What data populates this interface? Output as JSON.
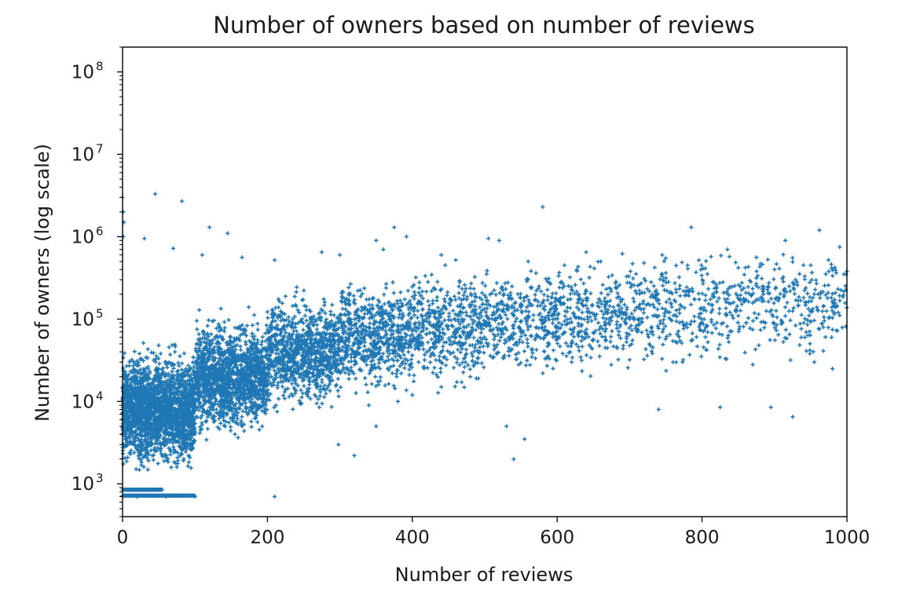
{
  "chart_data": {
    "type": "scatter",
    "title": "Number of owners based on number of reviews",
    "xlabel": "Number of reviews",
    "ylabel": "Number of owners (log scale)",
    "xlim": [
      0,
      1000
    ],
    "ylim": [
      400,
      200000000
    ],
    "yscale": "log",
    "grid": false,
    "legend": "none",
    "marker": "+",
    "color": "#1f77b4",
    "x_ticks": [
      {
        "value": 0,
        "label": "0"
      },
      {
        "value": 200,
        "label": "200"
      },
      {
        "value": 400,
        "label": "400"
      },
      {
        "value": 600,
        "label": "600"
      },
      {
        "value": 800,
        "label": "800"
      },
      {
        "value": 1000,
        "label": "1000"
      }
    ],
    "y_ticks": [
      {
        "value": 1000,
        "base": "10",
        "exp": "3"
      },
      {
        "value": 10000,
        "base": "10",
        "exp": "4"
      },
      {
        "value": 100000,
        "base": "10",
        "exp": "5"
      },
      {
        "value": 1000000,
        "base": "10",
        "exp": "6"
      },
      {
        "value": 10000000,
        "base": "10",
        "exp": "7"
      },
      {
        "value": 100000000,
        "base": "10",
        "exp": "8"
      }
    ],
    "series": [
      {
        "points": [
          [
            0,
            3000000
          ],
          [
            1,
            2000000
          ],
          [
            2,
            1500000
          ],
          [
            1,
            1000000
          ],
          [
            45,
            3300000
          ],
          [
            82,
            2700000
          ],
          [
            120,
            1300000
          ],
          [
            145,
            1100000
          ],
          [
            580,
            2300000
          ],
          [
            375,
            1300000
          ],
          [
            785,
            1300000
          ],
          [
            962,
            1200000
          ],
          [
            30,
            950000
          ],
          [
            70,
            720000
          ],
          [
            110,
            600000
          ],
          [
            165,
            560000
          ],
          [
            210,
            520000
          ],
          [
            275,
            650000
          ],
          [
            350,
            900000
          ],
          [
            392,
            1000000
          ],
          [
            440,
            600000
          ],
          [
            505,
            950000
          ],
          [
            520,
            900000
          ],
          [
            640,
            650000
          ],
          [
            690,
            620000
          ],
          [
            745,
            600000
          ],
          [
            835,
            700000
          ],
          [
            875,
            560000
          ],
          [
            915,
            900000
          ],
          [
            990,
            750000
          ],
          [
            320,
            2200
          ],
          [
            540,
            2000
          ],
          [
            210,
            700
          ],
          [
            20,
            700
          ],
          [
            60,
            700
          ],
          [
            100,
            700
          ],
          [
            895,
            8500
          ],
          [
            925,
            6500
          ],
          [
            825,
            8500
          ],
          [
            740,
            8000
          ],
          [
            530,
            5000
          ],
          [
            555,
            3500
          ],
          [
            350,
            5000
          ],
          [
            298,
            3000
          ],
          [
            300,
            600000
          ],
          [
            360,
            700000
          ],
          [
            460,
            520000
          ],
          [
            560,
            500000
          ],
          [
            610,
            450000
          ],
          [
            660,
            500000
          ],
          [
            720,
            480000
          ],
          [
            780,
            450000
          ],
          [
            850,
            420000
          ],
          [
            900,
            400000
          ],
          [
            950,
            450000
          ],
          [
            1000,
            380000
          ],
          [
            980,
            25000
          ],
          [
            955,
            30000
          ],
          [
            870,
            28000
          ],
          [
            760,
            30000
          ],
          [
            700,
            32000
          ],
          [
            620,
            30000
          ],
          [
            580,
            22000
          ],
          [
            480,
            20000
          ],
          [
            440,
            15000
          ],
          [
            400,
            12000
          ],
          [
            380,
            10000
          ],
          [
            340,
            9000
          ]
        ]
      }
    ],
    "dense_regions": [
      {
        "x": [
          0,
          100
        ],
        "y_log10": [
          2.85,
          5.4
        ],
        "count": 2200,
        "peak_y_log10": 3.9
      },
      {
        "x": [
          100,
          200
        ],
        "y_log10": [
          3.05,
          5.55
        ],
        "count": 1500,
        "peak_y_log10": 4.3
      },
      {
        "x": [
          200,
          300
        ],
        "y_log10": [
          3.4,
          5.7
        ],
        "count": 1000,
        "peak_y_log10": 4.6
      },
      {
        "x": [
          300,
          400
        ],
        "y_log10": [
          3.7,
          5.8
        ],
        "count": 650,
        "peak_y_log10": 4.8
      },
      {
        "x": [
          400,
          500
        ],
        "y_log10": [
          3.95,
          5.85
        ],
        "count": 460,
        "peak_y_log10": 4.9
      },
      {
        "x": [
          500,
          600
        ],
        "y_log10": [
          4.0,
          5.85
        ],
        "count": 360,
        "peak_y_log10": 5.0
      },
      {
        "x": [
          600,
          700
        ],
        "y_log10": [
          4.1,
          5.85
        ],
        "count": 300,
        "peak_y_log10": 5.05
      },
      {
        "x": [
          700,
          800
        ],
        "y_log10": [
          4.2,
          5.85
        ],
        "count": 240,
        "peak_y_log10": 5.1
      },
      {
        "x": [
          800,
          900
        ],
        "y_log10": [
          4.3,
          5.85
        ],
        "count": 200,
        "peak_y_log10": 5.15
      },
      {
        "x": [
          900,
          1000
        ],
        "y_log10": [
          4.35,
          5.85
        ],
        "count": 190,
        "peak_y_log10": 5.2
      }
    ],
    "floor_levels": [
      {
        "y": 850,
        "x": [
          0,
          55
        ]
      },
      {
        "y": 720,
        "x": [
          0,
          100
        ]
      }
    ]
  }
}
